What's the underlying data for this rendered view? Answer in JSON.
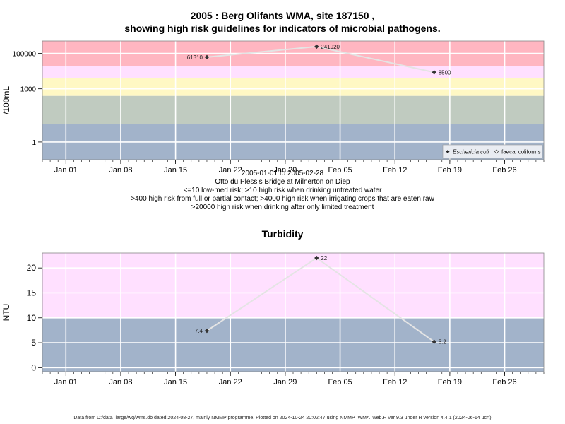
{
  "title_line1": "2005 : Berg Olifants WMA, site 187150 ,",
  "title_line2": "showing high risk guidelines for indicators of microbial pathogens.",
  "caption_lines": [
    "2005-01-01 to 2005-02-28",
    "Otto du Plessis Bridge at Milnerton on Diep",
    "<=10 low-med risk; >10 high risk when drinking untreated water",
    ">400 high risk from full or partial contact; >4000 high risk when irrigating crops that are eaten raw",
    ">20000 high risk when drinking after only limited treatment"
  ],
  "footer": "Data from D:/data_large/wq/wms.db dated 2024-08-27, mainly NMMP programme. Plotted on 2024-10-24 20:02:47 using NMMP_WMA_web.R ver 9.3 under R version 4.4.1 (2024-06-14 ucrt)",
  "colors": {
    "band_red": "#ffb6c1",
    "band_pink": "#ffe0ff",
    "band_yellow": "#fff8c4",
    "band_grey": "#c0cbc0",
    "band_blue": "#a2b3ca",
    "line": "#e4e4e4",
    "point": "#333333"
  },
  "chart_data": [
    {
      "type": "line",
      "title": "",
      "ylabel": "/100mL",
      "yscale": "log",
      "x_tick_labels": [
        "Jan 01",
        "Jan 08",
        "Jan 15",
        "Jan 22",
        "Jan 29",
        "Feb 05",
        "Feb 12",
        "Feb 19",
        "Feb 26"
      ],
      "x_tick_dates": [
        "2005-01-01",
        "2005-01-08",
        "2005-01-15",
        "2005-01-22",
        "2005-01-29",
        "2005-02-05",
        "2005-02-12",
        "2005-02-19",
        "2005-02-26"
      ],
      "xlim": [
        "2004-12-29",
        "2005-03-03"
      ],
      "y_tick_values": [
        1,
        1000,
        100000
      ],
      "y_tick_labels": [
        "1",
        "1000",
        "100000"
      ],
      "ylim": [
        0.1,
        500000
      ],
      "bands": [
        {
          "from": 0.1,
          "to": 10,
          "color": "#a2b3ca"
        },
        {
          "from": 10,
          "to": 400,
          "color": "#c0cbc0"
        },
        {
          "from": 400,
          "to": 4000,
          "color": "#fff8c4"
        },
        {
          "from": 4000,
          "to": 20000,
          "color": "#ffe0ff"
        },
        {
          "from": 20000,
          "to": 500000,
          "color": "#ffb6c1"
        }
      ],
      "series": [
        {
          "name": "Eschericia coli",
          "points": [
            {
              "date": "2005-01-19",
              "value": 61310,
              "label": "61310"
            },
            {
              "date": "2005-02-02",
              "value": 241920,
              "label": "241920"
            },
            {
              "date": "2005-02-17",
              "value": 8500,
              "label": "8500"
            }
          ]
        }
      ],
      "legend": {
        "position": "bottom-right",
        "entries": [
          "Eschericia coli",
          "faecal coliforms"
        ]
      }
    },
    {
      "type": "line",
      "title": "Turbidity",
      "ylabel": "NTU",
      "yscale": "linear",
      "x_tick_labels": [
        "Jan 01",
        "Jan 08",
        "Jan 15",
        "Jan 22",
        "Jan 29",
        "Feb 05",
        "Feb 12",
        "Feb 19",
        "Feb 26"
      ],
      "x_tick_dates": [
        "2005-01-01",
        "2005-01-08",
        "2005-01-15",
        "2005-01-22",
        "2005-01-29",
        "2005-02-05",
        "2005-02-12",
        "2005-02-19",
        "2005-02-26"
      ],
      "xlim": [
        "2004-12-29",
        "2005-03-03"
      ],
      "y_tick_values": [
        0,
        5,
        10,
        15,
        20
      ],
      "y_tick_labels": [
        "0",
        "5",
        "10",
        "15",
        "20"
      ],
      "ylim": [
        -0.8,
        23
      ],
      "bands": [
        {
          "from": -0.8,
          "to": 10,
          "color": "#a2b3ca"
        },
        {
          "from": 10,
          "to": 23,
          "color": "#ffe0ff"
        }
      ],
      "series": [
        {
          "name": "",
          "points": [
            {
              "date": "2005-01-19",
              "value": 7.4,
              "label": "7.4"
            },
            {
              "date": "2005-02-02",
              "value": 22,
              "label": "22"
            },
            {
              "date": "2005-02-17",
              "value": 5.2,
              "label": "5.2"
            }
          ]
        }
      ]
    }
  ]
}
